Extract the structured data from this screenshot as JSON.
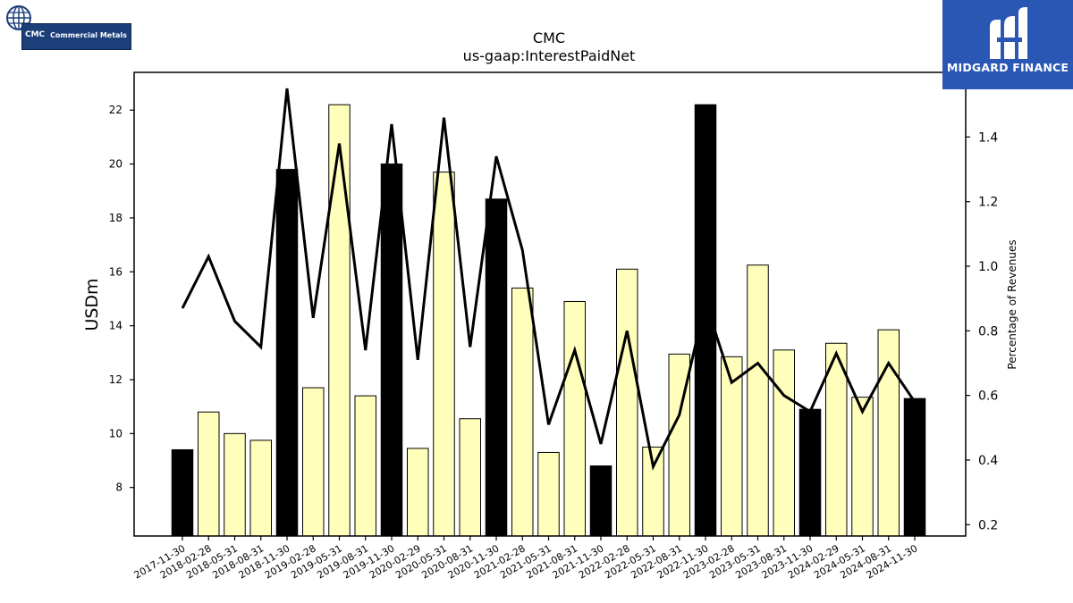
{
  "chart_data": {
    "type": "bar",
    "title": "CMC",
    "subtitle": "us-gaap:InterestPaidNet",
    "ylabel": "USDm",
    "y2label": "Percentage of Revenues",
    "ylim": [
      6.2,
      23.4
    ],
    "y2lim": [
      0.165,
      1.6
    ],
    "yticks": [
      8,
      10,
      12,
      14,
      16,
      18,
      20,
      22
    ],
    "y2ticks": [
      0.2,
      0.4,
      0.6,
      0.8,
      1.0,
      1.2,
      1.4
    ],
    "y2tick_labels": [
      "0.2",
      "0.4",
      "0.6",
      "0.8",
      "1.0",
      "1.2",
      "1.4"
    ],
    "categories": [
      "2017-11-30",
      "2018-02-28",
      "2018-05-31",
      "2018-08-31",
      "2018-11-30",
      "2019-02-28",
      "2019-05-31",
      "2019-08-31",
      "2019-11-30",
      "2020-02-29",
      "2020-05-31",
      "2020-08-31",
      "2020-11-30",
      "2021-02-28",
      "2021-05-31",
      "2021-08-31",
      "2021-11-30",
      "2022-02-28",
      "2022-05-31",
      "2022-08-31",
      "2022-11-30",
      "2023-02-28",
      "2023-05-31",
      "2023-08-31",
      "2023-11-30",
      "2024-02-29",
      "2024-05-31",
      "2024-08-31",
      "2024-11-30"
    ],
    "series": [
      {
        "type": "bar",
        "axis": "left",
        "values": [
          9.4,
          10.8,
          10.0,
          9.75,
          19.8,
          11.7,
          22.2,
          11.4,
          20.0,
          9.45,
          19.7,
          10.55,
          18.7,
          15.4,
          9.3,
          14.9,
          8.8,
          16.1,
          9.5,
          12.95,
          22.2,
          12.85,
          16.25,
          13.1,
          10.9,
          13.35,
          11.35,
          13.85,
          11.3
        ],
        "colors": [
          "#000000",
          "#ffffbb",
          "#ffffbb",
          "#ffffbb",
          "#000000",
          "#ffffbb",
          "#ffffbb",
          "#ffffbb",
          "#000000",
          "#ffffbb",
          "#ffffbb",
          "#ffffbb",
          "#000000",
          "#ffffbb",
          "#ffffbb",
          "#ffffbb",
          "#000000",
          "#ffffbb",
          "#ffffbb",
          "#ffffbb",
          "#000000",
          "#ffffbb",
          "#ffffbb",
          "#ffffbb",
          "#000000",
          "#ffffbb",
          "#ffffbb",
          "#ffffbb",
          "#000000"
        ]
      },
      {
        "type": "line",
        "axis": "right",
        "color": "#000000",
        "values": [
          0.87,
          1.03,
          0.83,
          0.75,
          1.55,
          0.84,
          1.38,
          0.74,
          1.44,
          0.71,
          1.46,
          0.75,
          1.34,
          1.05,
          0.51,
          0.74,
          0.45,
          0.8,
          0.38,
          0.54,
          0.89,
          0.64,
          0.7,
          0.6,
          0.55,
          0.73,
          0.55,
          0.7,
          0.58
        ]
      }
    ]
  },
  "logos": {
    "left": {
      "ticker": "CMC",
      "name": "Commercial Metals"
    },
    "right": {
      "name": "MIDGARD FINANCE"
    }
  }
}
